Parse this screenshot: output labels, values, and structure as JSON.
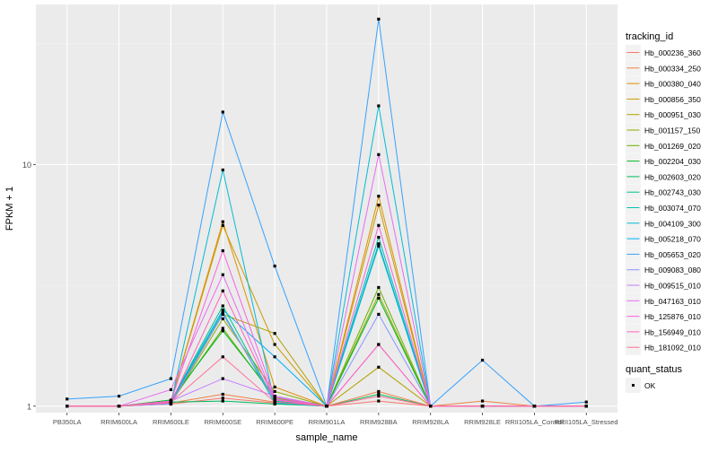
{
  "chart_data": {
    "type": "line",
    "xlabel": "sample_name",
    "ylabel": "FPKM + 1",
    "y_scale": "log10",
    "ylim": [
      0.94,
      46
    ],
    "y_ticks": [
      1,
      10
    ],
    "y_tick_labels": [
      "1",
      "10"
    ],
    "categories": [
      "PB350LA",
      "RRIM600LA",
      "RRIM600LE",
      "RRIM600SE",
      "RRIM600PE",
      "RRIM901LA",
      "RRIM928BA",
      "RRIM928LA",
      "RRIM928LE",
      "RRII105LA_Control",
      "RRII105LA_Stressed"
    ],
    "grid": true,
    "legend_position": "right",
    "legend_title": "tracking_id",
    "legend2_title": "quant_status",
    "legend2_entries": [
      "OK"
    ],
    "series": [
      {
        "name": "Hb_000236_360",
        "color": "#F8766D",
        "values": [
          1.0,
          1.0,
          1.02,
          1.08,
          1.03,
          1.0,
          1.05,
          1.0,
          1.0,
          1.0,
          1.0
        ]
      },
      {
        "name": "Hb_000334_250",
        "color": "#EE8042",
        "values": [
          1.0,
          1.0,
          1.03,
          1.12,
          1.04,
          1.0,
          1.15,
          1.0,
          1.05,
          1.0,
          1.0
        ]
      },
      {
        "name": "Hb_000380_040",
        "color": "#DF8F00",
        "values": [
          1.0,
          1.0,
          1.05,
          5.8,
          1.2,
          1.0,
          7.4,
          1.0,
          1.0,
          1.0,
          1.0
        ]
      },
      {
        "name": "Hb_000856_350",
        "color": "#CB9B00",
        "values": [
          1.0,
          1.0,
          1.05,
          5.6,
          1.8,
          1.0,
          6.8,
          1.0,
          1.0,
          1.0,
          1.0
        ]
      },
      {
        "name": "Hb_000951_030",
        "color": "#B2A100",
        "values": [
          1.0,
          1.0,
          1.04,
          2.4,
          2.0,
          1.0,
          1.45,
          1.0,
          1.0,
          1.0,
          1.0
        ]
      },
      {
        "name": "Hb_001157_150",
        "color": "#93AA00",
        "values": [
          1.0,
          1.0,
          1.02,
          2.3,
          1.15,
          1.0,
          2.9,
          1.0,
          1.0,
          1.0,
          1.0
        ]
      },
      {
        "name": "Hb_001269_020",
        "color": "#69B100",
        "values": [
          1.0,
          1.0,
          1.04,
          2.1,
          1.08,
          1.0,
          3.1,
          1.0,
          1.0,
          1.0,
          1.0
        ]
      },
      {
        "name": "Hb_002204_030",
        "color": "#00B81F",
        "values": [
          1.0,
          1.0,
          1.06,
          2.05,
          1.1,
          1.0,
          2.8,
          1.0,
          1.0,
          1.0,
          1.0
        ]
      },
      {
        "name": "Hb_002603_020",
        "color": "#00BC5A",
        "values": [
          1.0,
          1.0,
          1.04,
          1.05,
          1.02,
          1.0,
          1.12,
          1.0,
          1.0,
          1.0,
          1.0
        ]
      },
      {
        "name": "Hb_002743_030",
        "color": "#00C08B",
        "values": [
          1.0,
          1.0,
          1.05,
          2.6,
          1.05,
          1.0,
          4.6,
          1.0,
          1.0,
          1.0,
          1.0
        ]
      },
      {
        "name": "Hb_003074_070",
        "color": "#00BFB2",
        "values": [
          1.0,
          1.0,
          1.04,
          2.45,
          1.03,
          1.0,
          5.0,
          1.0,
          1.0,
          1.0,
          1.0
        ]
      },
      {
        "name": "Hb_004109_300",
        "color": "#00BCD6",
        "values": [
          1.0,
          1.0,
          1.03,
          9.5,
          1.03,
          1.0,
          17.5,
          1.0,
          1.0,
          1.0,
          1.0
        ]
      },
      {
        "name": "Hb_005218_070",
        "color": "#00B0F6",
        "values": [
          1.0,
          1.0,
          1.05,
          2.5,
          1.6,
          1.0,
          4.7,
          1.0,
          1.0,
          1.0,
          1.0
        ]
      },
      {
        "name": "Hb_005653_020",
        "color": "#35A2FF",
        "values": [
          1.07,
          1.1,
          1.3,
          16.5,
          3.8,
          1.0,
          40.0,
          1.0,
          1.55,
          1.0,
          1.04
        ]
      },
      {
        "name": "Hb_009083_080",
        "color": "#8B93FF",
        "values": [
          1.0,
          1.0,
          1.02,
          2.4,
          1.06,
          1.0,
          2.4,
          1.0,
          1.0,
          1.0,
          1.0
        ]
      },
      {
        "name": "Hb_009515_010",
        "color": "#C77CFF",
        "values": [
          1.0,
          1.0,
          1.05,
          1.3,
          1.1,
          1.0,
          1.8,
          1.0,
          1.0,
          1.0,
          1.0
        ]
      },
      {
        "name": "Hb_047163_010",
        "color": "#E76BF3",
        "values": [
          1.0,
          1.0,
          1.17,
          3.5,
          1.07,
          1.0,
          11.0,
          1.0,
          1.0,
          1.0,
          1.0
        ]
      },
      {
        "name": "Hb_125876_010",
        "color": "#FA62DB",
        "values": [
          1.0,
          1.0,
          1.05,
          4.4,
          1.09,
          1.0,
          5.6,
          1.0,
          1.0,
          1.0,
          1.0
        ]
      },
      {
        "name": "Hb_156949_010",
        "color": "#FF62BC",
        "values": [
          1.0,
          1.0,
          1.03,
          3.0,
          1.06,
          1.0,
          1.8,
          1.0,
          1.0,
          1.0,
          1.0
        ]
      },
      {
        "name": "Hb_181092_010",
        "color": "#FF6C91",
        "values": [
          1.0,
          1.0,
          1.04,
          1.6,
          1.04,
          1.0,
          1.1,
          1.0,
          1.0,
          1.0,
          1.0
        ]
      }
    ]
  }
}
